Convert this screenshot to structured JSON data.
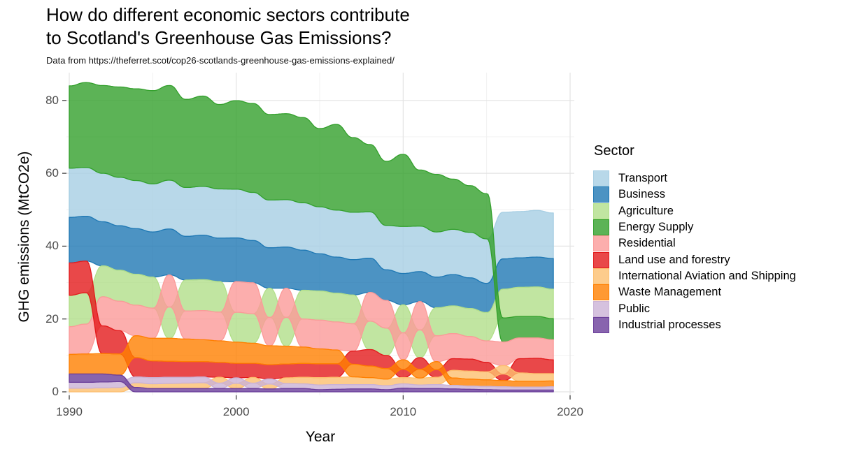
{
  "title_lines": [
    "How do different economic sectors contribute",
    "to Scotland's Greenhouse Gas Emissions?"
  ],
  "subtitle": "Data from https://theferret.scot/cop26-scotlands-greenhouse-gas-emissions-explained/",
  "x_axis": {
    "label": "Year",
    "ticks": [
      1990,
      2000,
      2010,
      2020
    ]
  },
  "y_axis": {
    "label": "GHG emissions (MtCO2e)",
    "ticks": [
      0,
      20,
      40,
      60,
      80
    ]
  },
  "legend": {
    "title": "Sector",
    "position": "right",
    "items": [
      {
        "label": "Transport",
        "color": "#A6CEE3"
      },
      {
        "label": "Business",
        "color": "#1F78B4"
      },
      {
        "label": "Agriculture",
        "color": "#B2DF8A"
      },
      {
        "label": "Energy Supply",
        "color": "#33A02C"
      },
      {
        "label": "Residential",
        "color": "#FB9A99"
      },
      {
        "label": "Land use and forestry",
        "color": "#E31A1C"
      },
      {
        "label": "International Aviation and Shipping",
        "color": "#FDBF6F"
      },
      {
        "label": "Waste Management",
        "color": "#FF7F00"
      },
      {
        "label": "Public",
        "color": "#CAB2D6"
      },
      {
        "label": "Industrial processes",
        "color": "#6A3D9A"
      }
    ]
  },
  "chart_data": {
    "type": "area",
    "variant": "rank-ordered-stacked-area-stream",
    "title": "How do different economic sectors contribute to Scotland's Greenhouse Gas Emissions?",
    "subtitle": "Data from https://theferret.scot/cop26-scotlands-greenhouse-gas-emissions-explained/",
    "xlabel": "Year",
    "ylabel": "GHG emissions (MtCO2e)",
    "xlim": [
      1990,
      2020
    ],
    "ylim": [
      0,
      87
    ],
    "grid": true,
    "fill_alpha": 0.8,
    "x": [
      1990,
      1991,
      1992,
      1993,
      1994,
      1995,
      1996,
      1997,
      1998,
      1999,
      2000,
      2001,
      2002,
      2003,
      2004,
      2005,
      2006,
      2007,
      2008,
      2009,
      2010,
      2011,
      2012,
      2013,
      2014,
      2015,
      2016,
      2017,
      2018,
      2019
    ],
    "series": [
      {
        "name": "Transport",
        "color": "#A6CEE3",
        "values": [
          13.5,
          13.4,
          13.3,
          13.3,
          13.2,
          13.2,
          13.4,
          13.4,
          13.4,
          13.5,
          13.4,
          13.2,
          13.1,
          13.0,
          13.0,
          12.9,
          12.9,
          13.0,
          12.7,
          12.2,
          12.9,
          12.5,
          12.4,
          12.4,
          12.5,
          12.2,
          12.8,
          12.7,
          12.8,
          12.5
        ]
      },
      {
        "name": "Business",
        "color": "#1F78B4",
        "values": [
          12.5,
          12.3,
          12.1,
          12.2,
          12.5,
          12.4,
          12.6,
          12.0,
          12.2,
          11.9,
          12.0,
          11.6,
          11.1,
          11.3,
          11.0,
          10.2,
          9.9,
          9.7,
          9.4,
          8.4,
          8.6,
          8.2,
          8.4,
          8.6,
          8.4,
          8.0,
          8.3,
          8.1,
          8.2,
          8.4
        ]
      },
      {
        "name": "Agriculture",
        "color": "#B2DF8A",
        "values": [
          8.6,
          8.6,
          8.5,
          8.5,
          8.5,
          8.5,
          8.6,
          8.5,
          8.5,
          8.4,
          8.2,
          8.1,
          8.0,
          7.9,
          7.9,
          8.0,
          7.9,
          7.9,
          7.8,
          7.5,
          7.7,
          7.6,
          7.7,
          7.6,
          7.7,
          7.8,
          7.9,
          8.0,
          8.1,
          8.1
        ]
      },
      {
        "name": "Energy Supply",
        "color": "#33A02C",
        "values": [
          22.6,
          23.3,
          24.1,
          24.8,
          25.2,
          25.6,
          26.0,
          24.2,
          24.8,
          23.2,
          24.3,
          24.4,
          23.5,
          23.6,
          23.4,
          21.5,
          23.5,
          20.5,
          18.5,
          17.6,
          19.8,
          15.4,
          15.8,
          13.8,
          12.8,
          12.4,
          6.6,
          5.9,
          5.9,
          5.8
        ]
      },
      {
        "name": "Residential",
        "color": "#FB9A99",
        "values": [
          7.6,
          8.2,
          8.0,
          8.1,
          8.4,
          8.3,
          8.8,
          7.7,
          8.0,
          7.9,
          8.4,
          8.5,
          7.8,
          8.0,
          7.7,
          7.9,
          7.7,
          7.5,
          7.9,
          7.6,
          7.4,
          7.8,
          7.1,
          6.9,
          6.2,
          5.9,
          6.5,
          5.7,
          5.6,
          5.5
        ]
      },
      {
        "name": "Land use and forestry",
        "color": "#E31A1C",
        "values": [
          8.9,
          8.7,
          7.6,
          6.4,
          5.3,
          4.6,
          4.4,
          4.3,
          4.2,
          4.1,
          4.0,
          3.9,
          3.9,
          3.8,
          3.8,
          3.8,
          3.7,
          3.6,
          4.5,
          3.6,
          2.3,
          3.2,
          2.1,
          3.2,
          3.3,
          2.6,
          1.8,
          3.9,
          4.2,
          3.8
        ]
      },
      {
        "name": "International Aviation and Shipping",
        "color": "#FDBF6F",
        "values": [
          1.0,
          1.0,
          1.1,
          1.2,
          1.3,
          1.3,
          1.4,
          1.5,
          1.6,
          1.6,
          1.45,
          1.55,
          1.35,
          1.55,
          1.8,
          2.0,
          2.0,
          2.1,
          1.9,
          1.8,
          1.7,
          1.9,
          2.0,
          2.1,
          2.2,
          2.2,
          2.3,
          2.3,
          2.1,
          2.0
        ]
      },
      {
        "name": "Waste Management",
        "color": "#FF7F00",
        "values": [
          5.4,
          5.5,
          5.6,
          5.8,
          6.0,
          6.2,
          6.3,
          6.2,
          6.0,
          5.9,
          5.8,
          5.5,
          5.2,
          4.9,
          4.5,
          4.1,
          3.8,
          3.5,
          3.2,
          2.9,
          2.6,
          2.4,
          2.2,
          2.0,
          1.9,
          1.8,
          1.7,
          1.6,
          1.6,
          1.6
        ]
      },
      {
        "name": "Public",
        "color": "#CAB2D6",
        "values": [
          1.6,
          1.6,
          1.6,
          1.6,
          1.6,
          1.7,
          1.7,
          1.6,
          1.6,
          1.5,
          1.5,
          1.5,
          1.4,
          1.4,
          1.3,
          1.3,
          1.3,
          1.2,
          1.2,
          1.1,
          1.2,
          1.0,
          1.1,
          1.0,
          0.9,
          0.9,
          0.9,
          0.8,
          0.8,
          0.9
        ]
      },
      {
        "name": "Industrial processes",
        "color": "#6A3D9A",
        "values": [
          2.3,
          2.3,
          2.2,
          1.8,
          1.2,
          0.9,
          0.9,
          0.9,
          0.9,
          0.9,
          0.9,
          0.9,
          0.8,
          0.9,
          0.9,
          0.6,
          0.7,
          0.8,
          0.8,
          0.6,
          1.0,
          0.9,
          0.9,
          0.8,
          0.7,
          0.6,
          0.5,
          0.5,
          0.5,
          0.5
        ]
      }
    ]
  }
}
